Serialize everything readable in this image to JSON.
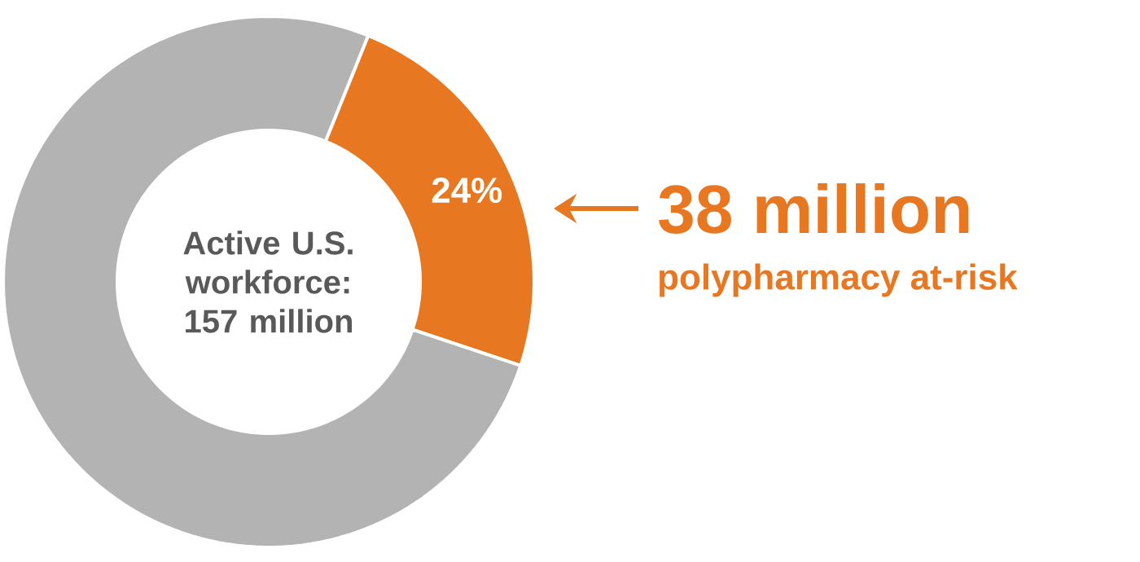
{
  "chart_data": {
    "type": "donut",
    "categories": [
      null,
      null
    ],
    "values": [
      24,
      76
    ],
    "colors": [
      "#e87722",
      "#b3b3b3"
    ],
    "value_labels": [
      "24%",
      null
    ],
    "annotations": [
      "Active U.S. workforce: 157 million",
      "38 million",
      "polypharmacy at-risk"
    ]
  }
}
